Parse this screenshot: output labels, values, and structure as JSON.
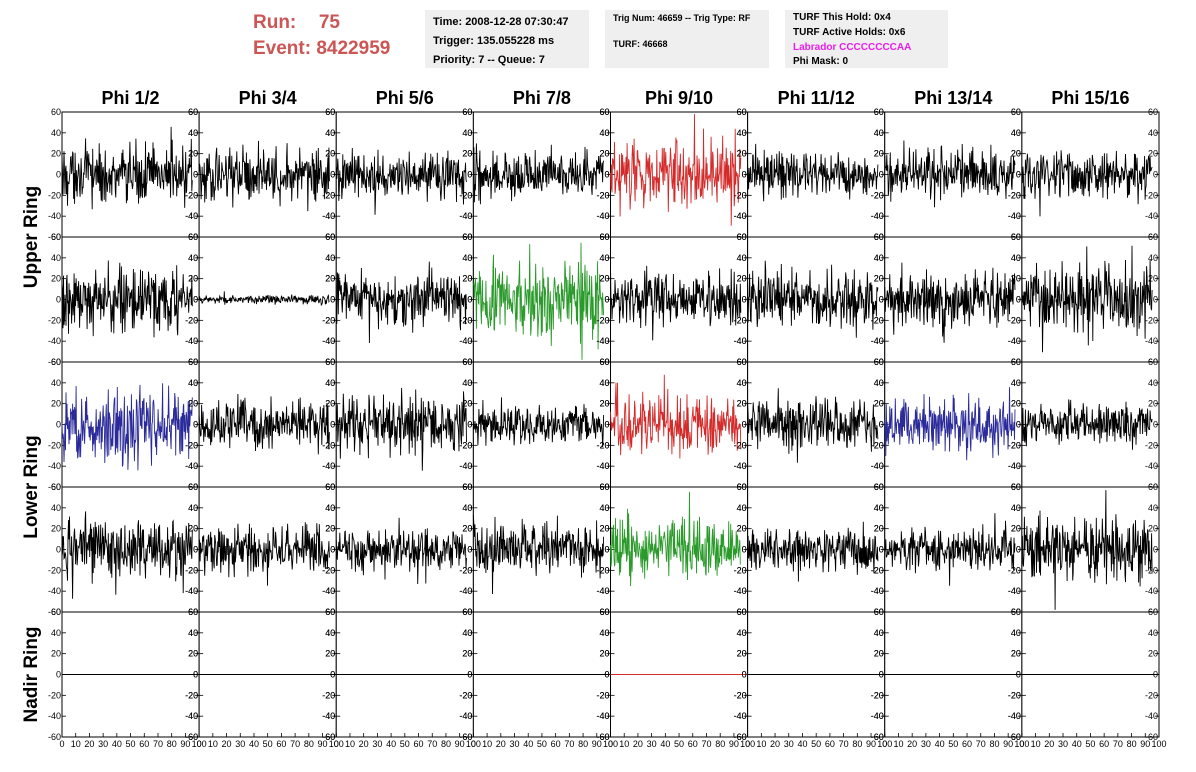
{
  "header": {
    "run_label": "Run:",
    "run_value": "75",
    "event_label": "Event:",
    "event_value": "8422959",
    "time": "Time: 2008-12-28 07:30:47",
    "trigger": "Trigger: 135.055228 ms",
    "priority": "Priority: 7 -- Queue: 7",
    "trig_num": "Trig Num: 46659 -- Trig Type: RF",
    "turf": "TURF: 46668",
    "turf_this_hold": "TURF This Hold: 0x4",
    "turf_active_holds": "TURF Active Holds: 0x6",
    "labrador": "Labrador CCCCCCCCAA",
    "phi_mask": "Phi Mask: 0",
    "labrador_color": "#e81ee8"
  },
  "chart_data": {
    "type": "line",
    "columns": [
      "Phi 1/2",
      "Phi 3/4",
      "Phi 5/6",
      "Phi 7/8",
      "Phi 9/10",
      "Phi 11/12",
      "Phi 13/14",
      "Phi 15/16"
    ],
    "row_labels": [
      {
        "name": "Upper Ring",
        "rows": [
          0,
          1
        ]
      },
      {
        "name": "Lower Ring",
        "rows": [
          2,
          3
        ]
      },
      {
        "name": "Nadir Ring",
        "rows": [
          4
        ]
      }
    ],
    "ylim": [
      -60,
      60
    ],
    "xlim": [
      0,
      100
    ],
    "yticks": [
      "60",
      "40",
      "20",
      "0",
      "-20",
      "-40",
      "-60"
    ],
    "xtick_labels": [
      "0",
      "10",
      "20",
      "30",
      "40",
      "50",
      "60",
      "70",
      "80",
      "90",
      "100"
    ],
    "samples": 260,
    "trace_length": 95,
    "colors": {
      "black": "#000000",
      "red": "#d42a2a",
      "green": "#2a9a2a",
      "blue": "#2a2a9a"
    },
    "panels": [
      [
        {
          "color": "black",
          "amp": 19
        },
        {
          "color": "black",
          "amp": 17
        },
        {
          "color": "black",
          "amp": 15
        },
        {
          "color": "black",
          "amp": 16
        },
        {
          "color": "red",
          "amp": 22
        },
        {
          "color": "black",
          "amp": 15
        },
        {
          "color": "black",
          "amp": 17
        },
        {
          "color": "black",
          "amp": 16
        }
      ],
      [
        {
          "color": "black",
          "amp": 20
        },
        {
          "color": "black",
          "amp": 3
        },
        {
          "color": "black",
          "amp": 18
        },
        {
          "color": "green",
          "amp": 25
        },
        {
          "color": "black",
          "amp": 18
        },
        {
          "color": "black",
          "amp": 19
        },
        {
          "color": "black",
          "amp": 18
        },
        {
          "color": "black",
          "amp": 22
        }
      ],
      [
        {
          "color": "blue",
          "amp": 25
        },
        {
          "color": "black",
          "amp": 16
        },
        {
          "color": "black",
          "amp": 18
        },
        {
          "color": "black",
          "amp": 12
        },
        {
          "color": "red",
          "amp": 19
        },
        {
          "color": "black",
          "amp": 17
        },
        {
          "color": "blue",
          "amp": 18
        },
        {
          "color": "black",
          "amp": 14
        }
      ],
      [
        {
          "color": "black",
          "amp": 19
        },
        {
          "color": "black",
          "amp": 16
        },
        {
          "color": "black",
          "amp": 14
        },
        {
          "color": "black",
          "amp": 17
        },
        {
          "color": "green",
          "amp": 18
        },
        {
          "color": "black",
          "amp": 13
        },
        {
          "color": "black",
          "amp": 13
        },
        {
          "color": "black",
          "amp": 21
        }
      ],
      [
        {
          "color": "black",
          "amp": 0
        },
        {
          "color": "black",
          "amp": 0
        },
        {
          "color": "black",
          "amp": 0
        },
        {
          "color": "black",
          "amp": 0
        },
        {
          "color": "red",
          "amp": 0
        },
        {
          "color": "black",
          "amp": 0
        },
        {
          "color": "black",
          "amp": 0
        },
        {
          "color": "black",
          "amp": 0
        }
      ]
    ]
  }
}
